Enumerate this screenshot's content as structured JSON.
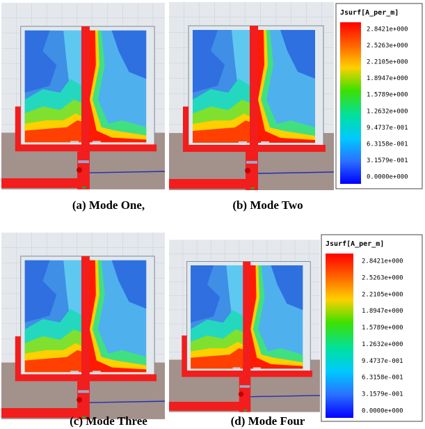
{
  "panels": [
    {
      "caption": "(a) Mode One,"
    },
    {
      "caption": "(b) Mode Two"
    },
    {
      "caption": "(c) Mode Three"
    },
    {
      "caption": "(d) Mode Four"
    }
  ],
  "legends": [
    {
      "title": "Jsurf[A_per_m]",
      "labels": [
        "2.8421e+000",
        "2.5263e+000",
        "2.2105e+000",
        "1.8947e+000",
        "1.5789e+000",
        "1.2632e+000",
        "9.4737e-001",
        "6.3158e-001",
        "3.1579e-001",
        "0.0000e+000"
      ]
    },
    {
      "title": "Jsurf[A_per_m]",
      "labels": [
        "2.8421e+000",
        "2.5263e+000",
        "2.2105e+000",
        "1.8947e+000",
        "1.5789e+000",
        "1.2632e+000",
        "9.4737e-001",
        "6.3158e-001",
        "3.1579e-001",
        "0.0000e+000"
      ]
    }
  ]
}
